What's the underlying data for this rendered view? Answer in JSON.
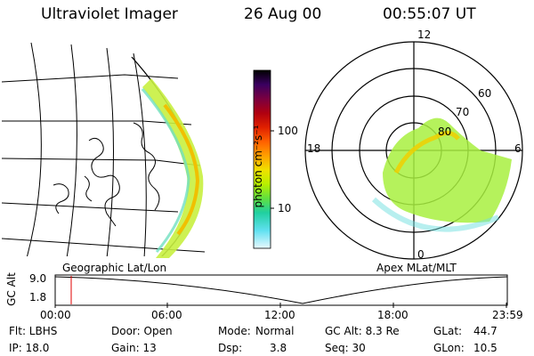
{
  "header": {
    "instrument": "Ultraviolet Imager",
    "date": "26 Aug 00",
    "time": "00:55:07 UT"
  },
  "colorbar": {
    "unit_label": "photon cm⁻²s⁻¹",
    "tick_100": "100",
    "tick_10": "10",
    "colors": [
      "#000000",
      "#3a0060",
      "#7a0040",
      "#b00010",
      "#e02000",
      "#ff6000",
      "#ffa000",
      "#f0e000",
      "#b8f000",
      "#60e040",
      "#20d0a0",
      "#60e0f0",
      "#e8f8ff"
    ]
  },
  "geo_panel": {
    "label": "Geographic Lat/Lon"
  },
  "polar_panel": {
    "label": "Apex MLat/MLT",
    "mlt_12": "12",
    "mlt_18": "18",
    "mlt_6": "6",
    "mlt_0": "0",
    "lat_60": "60",
    "lat_70": "70",
    "lat_80": "80"
  },
  "altitude_plot": {
    "ylabel": "GC Alt",
    "ytick_top": "9.0",
    "ytick_bottom": "1.8",
    "xticks": [
      "00:00",
      "06:00",
      "12:00",
      "18:00",
      "23:59"
    ],
    "marker_color": "#e00000"
  },
  "footer": {
    "filter": "Flt: LBHS",
    "ip": "IP: 18.0",
    "door": "Door: Open",
    "gain": "Gain: 13",
    "mode_label": "Mode:",
    "mode_value": "Normal",
    "dsp_label": "Dsp:",
    "dsp_value": "3.8",
    "gc_alt": "GC Alt: 8.3 Re",
    "seq": "Seq: 30",
    "glat_label": "GLat:",
    "glat_value": "44.7",
    "glon_label": "GLon:",
    "glon_value": "10.5"
  }
}
